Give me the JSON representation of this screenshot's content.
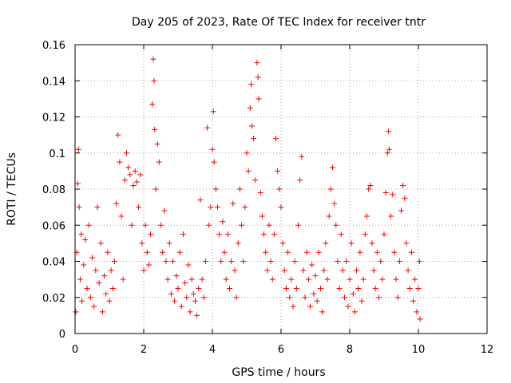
{
  "chart_data": {
    "type": "scatter",
    "title": "Day 205 of 2023, Rate Of TEC Index for receiver tntr",
    "xlabel": "GPS time / hours",
    "ylabel": "ROTI / TECUs",
    "xlim": [
      0,
      12
    ],
    "ylim": [
      0,
      0.16
    ],
    "xticks": [
      0,
      2,
      4,
      6,
      8,
      10,
      12
    ],
    "yticks": [
      0,
      0.02,
      0.04,
      0.06,
      0.08,
      0.1,
      0.12,
      0.14,
      0.16
    ],
    "xtick_labels": [
      "0",
      "2",
      "4",
      "6",
      "8",
      "10",
      "12"
    ],
    "ytick_labels": [
      "0",
      "0.02",
      "0.04",
      "0.06",
      "0.08",
      "0.1",
      "0.12",
      "0.14",
      "0.16"
    ],
    "grid": true,
    "grid_style": "dotted",
    "marker": "+",
    "color": "#ff0000",
    "series": [
      {
        "points": [
          [
            0.02,
            0.012
          ],
          [
            0.05,
            0.045
          ],
          [
            0.08,
            0.083
          ],
          [
            0.1,
            0.102
          ],
          [
            0.12,
            0.07
          ],
          [
            0.15,
            0.03
          ],
          [
            0.18,
            0.055
          ],
          [
            0.2,
            0.018
          ],
          [
            0.25,
            0.038
          ],
          [
            0.3,
            0.052
          ],
          [
            0.35,
            0.025
          ],
          [
            0.4,
            0.06
          ],
          [
            0.45,
            0.02
          ],
          [
            0.5,
            0.042
          ],
          [
            0.55,
            0.015
          ],
          [
            0.6,
            0.035
          ],
          [
            0.65,
            0.07
          ],
          [
            0.7,
            0.028
          ],
          [
            0.75,
            0.05
          ],
          [
            0.8,
            0.012
          ],
          [
            0.85,
            0.032
          ],
          [
            0.9,
            0.022
          ],
          [
            0.95,
            0.045
          ],
          [
            1.0,
            0.018
          ],
          [
            1.05,
            0.035
          ],
          [
            1.1,
            0.025
          ],
          [
            1.15,
            0.04
          ],
          [
            1.2,
            0.072
          ],
          [
            1.25,
            0.11
          ],
          [
            1.3,
            0.095
          ],
          [
            1.35,
            0.065
          ],
          [
            1.4,
            0.03
          ],
          [
            1.45,
            0.085
          ],
          [
            1.5,
            0.1
          ],
          [
            1.55,
            0.092
          ],
          [
            1.6,
            0.088
          ],
          [
            1.65,
            0.06
          ],
          [
            1.7,
            0.082
          ],
          [
            1.75,
            0.09
          ],
          [
            1.8,
            0.084
          ],
          [
            1.85,
            0.07
          ],
          [
            1.9,
            0.088
          ],
          [
            1.95,
            0.05
          ],
          [
            2.0,
            0.035
          ],
          [
            2.05,
            0.06
          ],
          [
            2.1,
            0.045
          ],
          [
            2.15,
            0.038
          ],
          [
            2.2,
            0.055
          ],
          [
            2.25,
            0.127
          ],
          [
            2.28,
            0.152
          ],
          [
            2.3,
            0.14
          ],
          [
            2.32,
            0.113
          ],
          [
            2.35,
            0.08
          ],
          [
            2.4,
            0.105
          ],
          [
            2.45,
            0.095
          ],
          [
            2.5,
            0.06
          ],
          [
            2.55,
            0.045
          ],
          [
            2.6,
            0.068
          ],
          [
            2.65,
            0.04
          ],
          [
            2.7,
            0.03
          ],
          [
            2.75,
            0.05
          ],
          [
            2.8,
            0.022
          ],
          [
            2.85,
            0.04
          ],
          [
            2.9,
            0.018
          ],
          [
            2.95,
            0.032
          ],
          [
            3.0,
            0.025
          ],
          [
            3.05,
            0.045
          ],
          [
            3.1,
            0.015
          ],
          [
            3.15,
            0.055
          ],
          [
            3.2,
            0.028
          ],
          [
            3.25,
            0.02
          ],
          [
            3.3,
            0.038
          ],
          [
            3.35,
            0.012
          ],
          [
            3.4,
            0.03
          ],
          [
            3.45,
            0.022
          ],
          [
            3.5,
            0.018
          ],
          [
            3.55,
            0.01
          ],
          [
            3.6,
            0.025
          ],
          [
            3.65,
            0.074
          ],
          [
            3.7,
            0.03
          ],
          [
            3.75,
            0.02
          ],
          [
            3.8,
            0.04
          ],
          [
            3.85,
            0.114
          ],
          [
            3.9,
            0.06
          ],
          [
            3.95,
            0.07
          ],
          [
            4.0,
            0.102
          ],
          [
            4.03,
            0.123
          ],
          [
            4.05,
            0.095
          ],
          [
            4.1,
            0.08
          ],
          [
            4.15,
            0.07
          ],
          [
            4.2,
            0.055
          ],
          [
            4.25,
            0.04
          ],
          [
            4.3,
            0.062
          ],
          [
            4.35,
            0.045
          ],
          [
            4.4,
            0.03
          ],
          [
            4.45,
            0.055
          ],
          [
            4.5,
            0.025
          ],
          [
            4.55,
            0.04
          ],
          [
            4.6,
            0.072
          ],
          [
            4.65,
            0.035
          ],
          [
            4.7,
            0.02
          ],
          [
            4.75,
            0.05
          ],
          [
            4.8,
            0.08
          ],
          [
            4.85,
            0.06
          ],
          [
            4.9,
            0.04
          ],
          [
            4.95,
            0.07
          ],
          [
            5.0,
            0.1
          ],
          [
            5.05,
            0.09
          ],
          [
            5.1,
            0.125
          ],
          [
            5.13,
            0.138
          ],
          [
            5.15,
            0.115
          ],
          [
            5.2,
            0.108
          ],
          [
            5.25,
            0.085
          ],
          [
            5.3,
            0.15
          ],
          [
            5.33,
            0.142
          ],
          [
            5.35,
            0.13
          ],
          [
            5.4,
            0.078
          ],
          [
            5.45,
            0.065
          ],
          [
            5.5,
            0.055
          ],
          [
            5.55,
            0.045
          ],
          [
            5.6,
            0.035
          ],
          [
            5.65,
            0.06
          ],
          [
            5.7,
            0.04
          ],
          [
            5.75,
            0.03
          ],
          [
            5.8,
            0.055
          ],
          [
            5.85,
            0.108
          ],
          [
            5.9,
            0.09
          ],
          [
            5.95,
            0.08
          ],
          [
            6.0,
            0.07
          ],
          [
            6.05,
            0.05
          ],
          [
            6.1,
            0.035
          ],
          [
            6.15,
            0.025
          ],
          [
            6.2,
            0.045
          ],
          [
            6.25,
            0.02
          ],
          [
            6.3,
            0.03
          ],
          [
            6.35,
            0.015
          ],
          [
            6.4,
            0.04
          ],
          [
            6.45,
            0.025
          ],
          [
            6.5,
            0.06
          ],
          [
            6.55,
            0.085
          ],
          [
            6.6,
            0.098
          ],
          [
            6.65,
            0.035
          ],
          [
            6.7,
            0.02
          ],
          [
            6.75,
            0.045
          ],
          [
            6.8,
            0.03
          ],
          [
            6.85,
            0.015
          ],
          [
            6.9,
            0.038
          ],
          [
            6.95,
            0.022
          ],
          [
            7.0,
            0.032
          ],
          [
            7.05,
            0.018
          ],
          [
            7.1,
            0.045
          ],
          [
            7.15,
            0.025
          ],
          [
            7.2,
            0.012
          ],
          [
            7.25,
            0.035
          ],
          [
            7.3,
            0.05
          ],
          [
            7.35,
            0.03
          ],
          [
            7.4,
            0.065
          ],
          [
            7.45,
            0.08
          ],
          [
            7.5,
            0.092
          ],
          [
            7.55,
            0.072
          ],
          [
            7.6,
            0.06
          ],
          [
            7.65,
            0.04
          ],
          [
            7.7,
            0.025
          ],
          [
            7.75,
            0.055
          ],
          [
            7.8,
            0.035
          ],
          [
            7.85,
            0.02
          ],
          [
            7.9,
            0.04
          ],
          [
            7.95,
            0.015
          ],
          [
            8.0,
            0.03
          ],
          [
            8.05,
            0.05
          ],
          [
            8.1,
            0.022
          ],
          [
            8.15,
            0.012
          ],
          [
            8.2,
            0.035
          ],
          [
            8.25,
            0.025
          ],
          [
            8.3,
            0.045
          ],
          [
            8.35,
            0.018
          ],
          [
            8.4,
            0.03
          ],
          [
            8.45,
            0.055
          ],
          [
            8.5,
            0.065
          ],
          [
            8.55,
            0.08
          ],
          [
            8.6,
            0.082
          ],
          [
            8.65,
            0.05
          ],
          [
            8.7,
            0.035
          ],
          [
            8.75,
            0.025
          ],
          [
            8.8,
            0.045
          ],
          [
            8.85,
            0.02
          ],
          [
            8.9,
            0.04
          ],
          [
            8.95,
            0.03
          ],
          [
            9.0,
            0.055
          ],
          [
            9.05,
            0.078
          ],
          [
            9.1,
            0.1
          ],
          [
            9.13,
            0.112
          ],
          [
            9.15,
            0.102
          ],
          [
            9.2,
            0.065
          ],
          [
            9.25,
            0.077
          ],
          [
            9.3,
            0.045
          ],
          [
            9.35,
            0.03
          ],
          [
            9.4,
            0.02
          ],
          [
            9.45,
            0.04
          ],
          [
            9.5,
            0.068
          ],
          [
            9.55,
            0.082
          ],
          [
            9.6,
            0.075
          ],
          [
            9.65,
            0.05
          ],
          [
            9.7,
            0.035
          ],
          [
            9.75,
            0.025
          ],
          [
            9.8,
            0.045
          ],
          [
            9.85,
            0.018
          ],
          [
            9.9,
            0.03
          ],
          [
            9.95,
            0.012
          ],
          [
            10.0,
            0.025
          ],
          [
            10.03,
            0.04
          ],
          [
            10.05,
            0.008
          ]
        ]
      }
    ]
  }
}
